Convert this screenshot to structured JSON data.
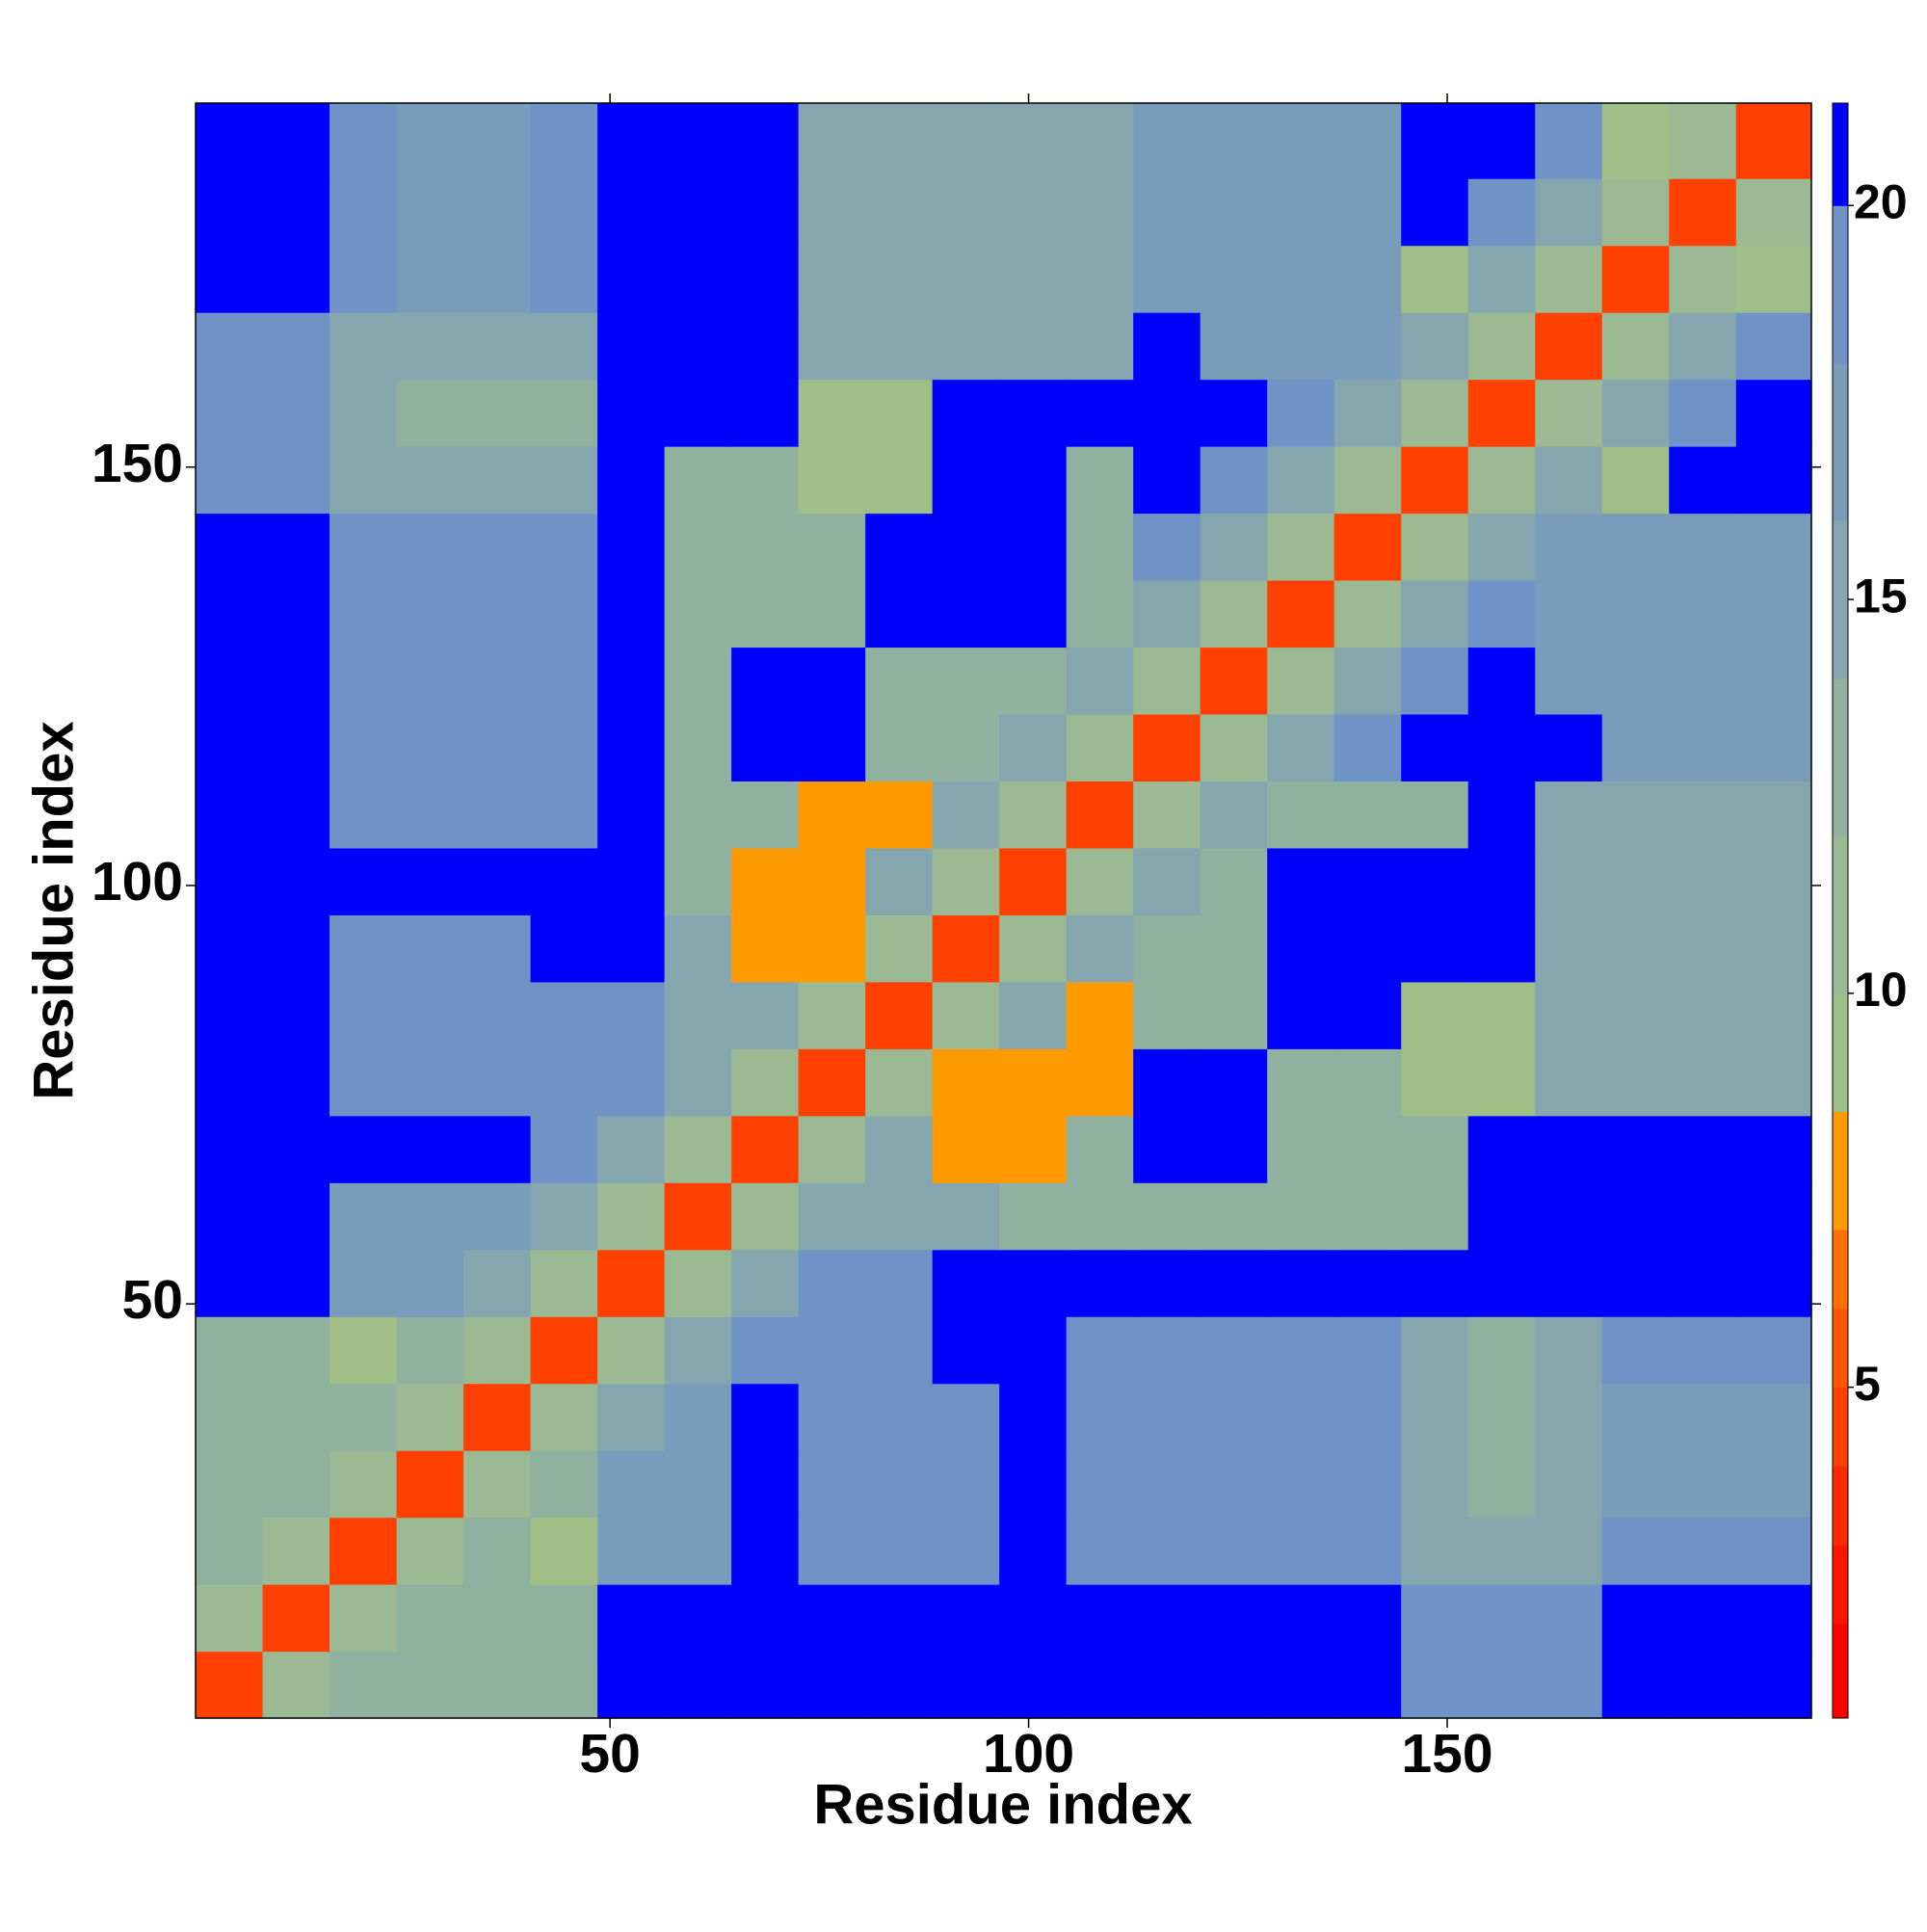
{
  "chart_data": {
    "type": "heatmap",
    "xlabel": "Residue index",
    "ylabel": "Residue index",
    "x_edges": [
      0.5,
      8.5,
      16.5,
      24.5,
      32.5,
      40.5,
      48.5,
      56.5,
      64.5,
      72.5,
      80.5,
      88.5,
      96.5,
      104.5,
      112.5,
      120.5,
      128.5,
      136.5,
      144.5,
      152.5,
      160.5,
      168.5,
      176.5,
      184.5,
      193.5
    ],
    "y_edges": [
      0.5,
      8.5,
      16.5,
      24.5,
      32.5,
      40.5,
      48.5,
      56.5,
      64.5,
      72.5,
      80.5,
      88.5,
      96.5,
      104.5,
      112.5,
      120.5,
      128.5,
      136.5,
      144.5,
      152.5,
      160.5,
      168.5,
      176.5,
      184.5,
      193.5
    ],
    "xlim": [
      0.5,
      193.5
    ],
    "ylim": [
      0.5,
      193.5
    ],
    "xticks": [
      50,
      100,
      150
    ],
    "yticks": [
      50,
      100,
      150
    ],
    "z": [
      [
        4,
        11,
        13,
        13,
        13,
        13,
        21,
        21,
        21,
        21,
        21,
        21,
        21,
        21,
        21,
        21,
        21,
        21,
        19.5,
        19.5,
        19.5,
        21,
        21,
        21
      ],
      [
        11,
        4,
        11,
        13,
        13,
        13,
        21,
        21,
        21,
        21,
        21,
        21,
        21,
        21,
        21,
        21,
        21,
        21,
        19.5,
        19.5,
        19.5,
        21,
        21,
        21
      ],
      [
        13,
        11,
        4,
        11,
        13,
        9,
        17,
        17,
        21,
        19,
        19,
        19.5,
        20.5,
        19,
        19,
        19,
        19,
        19,
        14,
        14,
        14,
        18,
        18,
        18
      ],
      [
        13,
        13,
        11,
        4,
        11,
        13,
        17,
        17,
        21,
        19,
        19,
        19.5,
        20.5,
        19,
        19,
        19,
        19,
        19,
        14,
        12,
        14,
        17,
        17,
        17
      ],
      [
        13,
        13,
        13,
        11,
        4,
        11,
        14,
        17,
        21,
        19,
        19,
        19.5,
        20.5,
        19,
        19,
        19,
        19,
        19,
        14,
        12,
        14,
        17,
        17,
        17
      ],
      [
        13,
        13,
        9,
        13,
        11,
        4,
        11,
        14,
        18,
        19,
        19,
        20.5,
        20.5,
        19,
        19,
        19,
        19,
        19,
        14,
        12,
        14,
        18,
        18,
        18
      ],
      [
        21,
        21,
        17,
        17,
        14,
        11,
        4,
        11,
        14,
        19,
        19,
        20.5,
        20.5,
        20.5,
        20.5,
        20.5,
        20.5,
        21,
        21,
        21,
        21,
        21,
        21,
        21
      ],
      [
        21,
        21,
        17,
        17,
        17,
        14,
        11,
        4,
        11,
        14,
        14,
        14,
        12,
        12,
        12,
        12,
        12,
        12,
        12,
        21,
        21,
        21,
        21,
        21
      ],
      [
        21,
        21,
        21,
        21,
        21,
        18,
        14,
        11,
        4,
        11,
        14,
        8,
        8,
        12,
        21,
        21,
        12,
        12,
        12,
        21,
        21,
        21,
        21,
        21
      ],
      [
        21,
        21,
        19,
        19,
        19,
        19,
        19,
        14,
        11,
        4,
        11,
        8,
        8,
        8,
        21,
        21,
        12,
        12,
        9,
        9,
        14,
        14,
        14,
        14
      ],
      [
        21,
        21,
        19,
        19,
        19,
        19,
        19,
        14,
        14,
        11,
        4,
        11,
        14,
        8,
        12,
        12,
        21,
        21,
        9,
        9,
        14,
        14,
        14,
        14
      ],
      [
        21,
        21,
        19.5,
        19.5,
        19.5,
        20.5,
        20.5,
        14,
        8,
        8,
        11,
        4,
        11,
        14,
        12,
        12,
        21,
        21,
        21,
        21,
        14,
        14,
        14,
        14
      ],
      [
        21,
        21,
        20.5,
        20.5,
        20.5,
        20.5,
        20.5,
        12,
        8,
        8,
        14,
        11,
        4,
        11,
        14,
        12,
        21,
        21,
        21,
        21,
        14,
        14,
        14,
        14
      ],
      [
        21,
        21,
        19,
        19,
        19,
        19,
        20.5,
        12,
        12,
        8,
        8,
        14,
        11,
        4,
        11,
        14,
        12,
        12,
        12,
        21,
        14,
        14,
        14,
        14
      ],
      [
        21,
        21,
        19,
        19,
        19,
        19,
        20.5,
        12,
        21,
        21,
        12,
        12,
        14,
        11,
        4,
        11,
        14,
        18,
        21,
        21,
        21,
        17,
        17,
        17
      ],
      [
        21,
        21,
        19,
        19,
        19,
        19,
        20.5,
        12,
        21,
        21,
        12,
        12,
        12,
        14,
        11,
        4,
        11,
        14,
        18,
        21,
        16,
        16,
        16,
        16
      ],
      [
        21,
        21,
        19,
        19,
        19,
        19,
        20.5,
        12,
        12,
        12,
        21,
        21,
        21,
        12,
        14,
        11,
        4,
        11,
        14,
        18,
        16,
        16,
        16,
        16
      ],
      [
        21,
        21,
        19,
        19,
        19,
        19,
        21,
        12,
        12,
        12,
        21,
        21,
        21,
        12,
        18,
        14,
        11,
        4,
        11,
        14,
        16,
        16,
        16,
        16
      ],
      [
        19.5,
        19.5,
        14,
        14,
        14,
        14,
        21,
        12,
        12,
        9,
        9,
        21,
        21,
        12,
        21,
        18,
        14,
        11,
        4,
        11,
        14,
        9,
        21,
        21
      ],
      [
        19.5,
        19.5,
        14,
        12,
        12,
        12,
        21,
        21,
        21,
        9,
        9,
        21,
        21,
        21,
        21,
        21,
        18,
        14,
        11,
        4,
        11,
        14,
        18,
        21
      ],
      [
        19.5,
        19.5,
        14,
        14,
        14,
        14,
        21,
        21,
        21,
        14,
        14,
        14,
        14,
        14,
        21,
        16,
        16,
        16,
        14,
        11,
        4,
        11,
        14,
        18
      ],
      [
        21,
        21,
        18,
        17,
        17,
        18,
        21,
        21,
        21,
        14,
        14,
        14,
        14,
        14,
        17,
        16,
        16,
        16,
        9,
        14,
        11,
        4,
        11,
        9
      ],
      [
        21,
        21,
        18,
        17,
        17,
        18,
        21,
        21,
        21,
        14,
        14,
        14,
        14,
        14,
        17,
        16,
        16,
        16,
        21,
        18,
        14,
        11,
        4,
        11
      ],
      [
        21,
        21,
        18,
        17,
        17,
        18,
        21,
        21,
        21,
        14,
        14,
        14,
        14,
        14,
        17,
        16,
        16,
        16,
        21,
        21,
        18,
        9,
        11,
        4
      ]
    ],
    "colorbar": {
      "levels": [
        0.8,
        2,
        3,
        4,
        5,
        6,
        7,
        8.5,
        10,
        12,
        14,
        16,
        18,
        20,
        21.3
      ],
      "colors": [
        "#ff0000",
        "#ff1500",
        "#ff2a00",
        "#ff4000",
        "#ff5500",
        "#ff7000",
        "#ff9900",
        "#9fbf86",
        "#9bb993",
        "#90b0a0",
        "#85a6ae",
        "#7a9cbb",
        "#6f93c6",
        "#0000ff"
      ],
      "ticks": [
        5,
        10,
        15,
        20
      ]
    }
  }
}
